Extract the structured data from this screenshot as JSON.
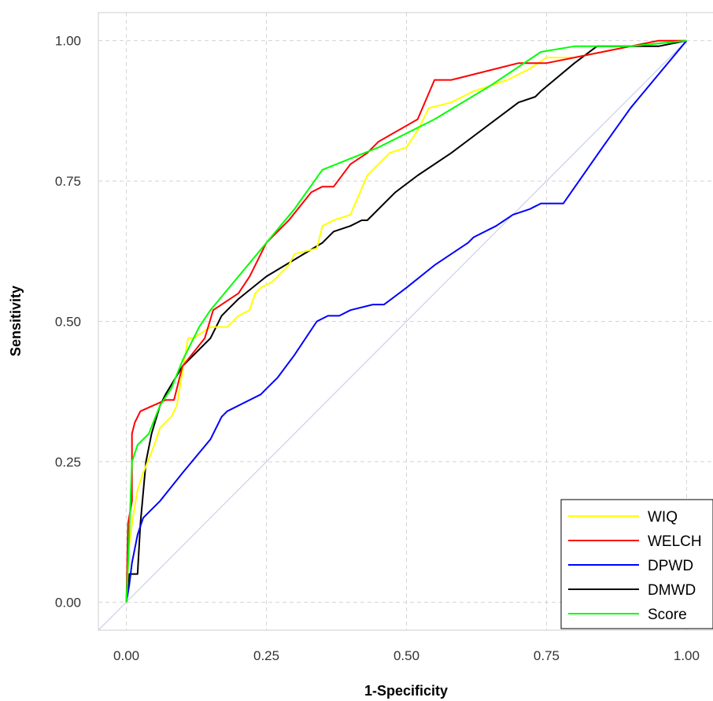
{
  "chart_data": {
    "type": "line",
    "title": "",
    "xlabel": "1-Specificity",
    "ylabel": "Sensitivity",
    "xlim": [
      -0.05,
      1.05
    ],
    "ylim": [
      -0.05,
      1.05
    ],
    "xticks": [
      "0.00",
      "0.25",
      "0.50",
      "0.75",
      "1.00"
    ],
    "yticks": [
      "0.00",
      "0.25",
      "0.50",
      "0.75",
      "1.00"
    ],
    "grid": true,
    "legend_position": "bottom-right",
    "reference_line": {
      "x": [
        -0.05,
        1.0
      ],
      "y": [
        -0.05,
        1.0
      ],
      "color": "#c8d2e6"
    },
    "series": [
      {
        "name": "WIQ",
        "color": "#ffff00",
        "x": [
          0,
          0.005,
          0.01,
          0.02,
          0.03,
          0.05,
          0.06,
          0.08,
          0.09,
          0.11,
          0.12,
          0.15,
          0.18,
          0.2,
          0.22,
          0.23,
          0.24,
          0.26,
          0.27,
          0.29,
          0.3,
          0.34,
          0.35,
          0.37,
          0.4,
          0.43,
          0.44,
          0.47,
          0.5,
          0.52,
          0.54,
          0.58,
          0.62,
          0.65,
          0.68,
          0.7,
          0.72,
          0.75,
          0.8,
          0.85,
          0.9,
          0.95,
          1.0
        ],
        "y": [
          0,
          0.1,
          0.14,
          0.2,
          0.23,
          0.28,
          0.31,
          0.33,
          0.35,
          0.47,
          0.47,
          0.49,
          0.49,
          0.51,
          0.52,
          0.55,
          0.56,
          0.57,
          0.58,
          0.6,
          0.62,
          0.63,
          0.67,
          0.68,
          0.69,
          0.76,
          0.77,
          0.8,
          0.81,
          0.84,
          0.88,
          0.89,
          0.91,
          0.92,
          0.93,
          0.94,
          0.95,
          0.97,
          0.97,
          0.98,
          0.99,
          1.0,
          1.0
        ]
      },
      {
        "name": "WELCH",
        "color": "#ff0000",
        "x": [
          0,
          0.003,
          0.01,
          0.01,
          0.015,
          0.025,
          0.07,
          0.085,
          0.1,
          0.14,
          0.155,
          0.2,
          0.22,
          0.25,
          0.29,
          0.33,
          0.35,
          0.37,
          0.4,
          0.43,
          0.45,
          0.52,
          0.55,
          0.58,
          0.62,
          0.7,
          0.75,
          0.8,
          0.85,
          0.9,
          0.95,
          1.0
        ],
        "y": [
          0,
          0.14,
          0.18,
          0.3,
          0.32,
          0.34,
          0.36,
          0.36,
          0.42,
          0.47,
          0.52,
          0.55,
          0.58,
          0.64,
          0.68,
          0.73,
          0.74,
          0.74,
          0.78,
          0.8,
          0.82,
          0.86,
          0.93,
          0.93,
          0.94,
          0.96,
          0.96,
          0.97,
          0.98,
          0.99,
          1.0,
          1.0
        ]
      },
      {
        "name": "DPWD",
        "color": "#0000ff",
        "x": [
          0,
          0.005,
          0.01,
          0.02,
          0.03,
          0.04,
          0.06,
          0.1,
          0.15,
          0.17,
          0.18,
          0.24,
          0.25,
          0.27,
          0.3,
          0.34,
          0.36,
          0.38,
          0.4,
          0.44,
          0.46,
          0.5,
          0.55,
          0.61,
          0.62,
          0.66,
          0.69,
          0.72,
          0.74,
          0.76,
          0.78,
          0.85,
          0.9,
          0.95,
          1.0
        ],
        "y": [
          0,
          0.03,
          0.07,
          0.12,
          0.15,
          0.16,
          0.18,
          0.23,
          0.29,
          0.33,
          0.34,
          0.37,
          0.38,
          0.4,
          0.44,
          0.5,
          0.51,
          0.51,
          0.52,
          0.53,
          0.53,
          0.56,
          0.6,
          0.64,
          0.65,
          0.67,
          0.69,
          0.7,
          0.71,
          0.71,
          0.71,
          0.81,
          0.88,
          0.94,
          1.0
        ]
      },
      {
        "name": "DMWD",
        "color": "#000000",
        "x": [
          0,
          0.005,
          0.01,
          0.02,
          0.025,
          0.035,
          0.045,
          0.06,
          0.07,
          0.1,
          0.15,
          0.17,
          0.18,
          0.2,
          0.25,
          0.3,
          0.35,
          0.37,
          0.4,
          0.42,
          0.43,
          0.48,
          0.52,
          0.58,
          0.62,
          0.66,
          0.7,
          0.73,
          0.74,
          0.8,
          0.84,
          0.9,
          0.95,
          1.0
        ],
        "y": [
          0,
          0.05,
          0.05,
          0.05,
          0.14,
          0.25,
          0.3,
          0.35,
          0.37,
          0.42,
          0.47,
          0.51,
          0.52,
          0.54,
          0.58,
          0.61,
          0.64,
          0.66,
          0.67,
          0.68,
          0.68,
          0.73,
          0.76,
          0.8,
          0.83,
          0.86,
          0.89,
          0.9,
          0.91,
          0.96,
          0.99,
          0.99,
          0.99,
          1.0
        ]
      },
      {
        "name": "Score",
        "color": "#00ff00",
        "x": [
          0,
          0.005,
          0.01,
          0.02,
          0.04,
          0.06,
          0.08,
          0.1,
          0.13,
          0.15,
          0.2,
          0.25,
          0.3,
          0.35,
          0.45,
          0.55,
          0.65,
          0.74,
          0.8,
          0.9,
          1.0
        ],
        "y": [
          0,
          0.12,
          0.25,
          0.28,
          0.3,
          0.35,
          0.38,
          0.43,
          0.49,
          0.52,
          0.58,
          0.64,
          0.7,
          0.77,
          0.81,
          0.86,
          0.92,
          0.98,
          0.99,
          0.99,
          1.0
        ]
      }
    ]
  }
}
